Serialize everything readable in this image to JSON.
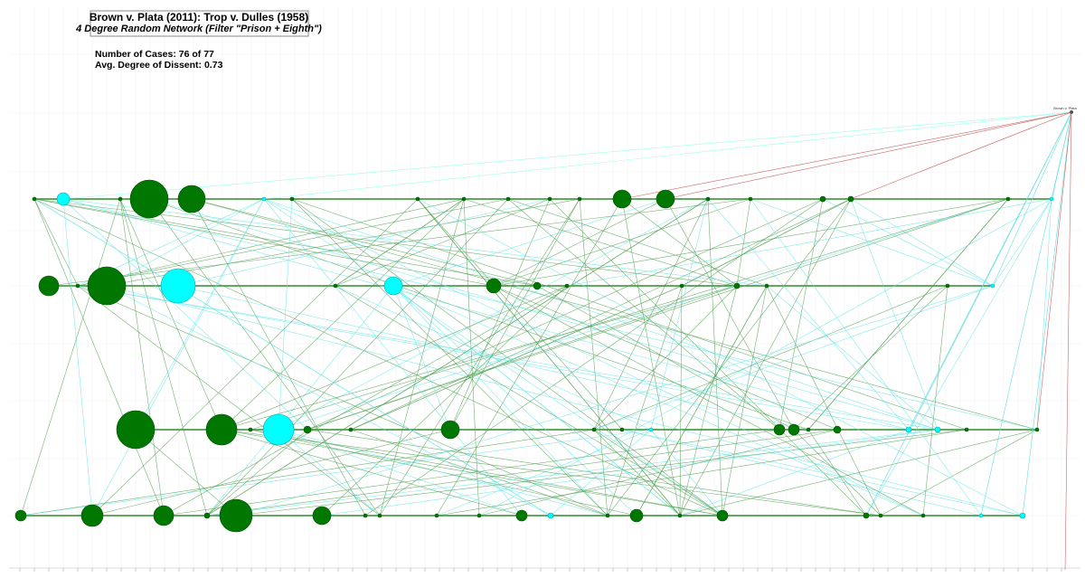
{
  "header": {
    "title": "Brown v. Plata (2011): Trop v. Dulles (1958)",
    "subtitle": "4 Degree Random Network (Filter \"Prison + Eighth\")"
  },
  "stats": {
    "cases": "Number of Cases: 76 of 77",
    "dissent": "Avg. Degree of Dissent: 0.73"
  },
  "nodes": {
    "focus": "Brown v. Plata"
  }
}
